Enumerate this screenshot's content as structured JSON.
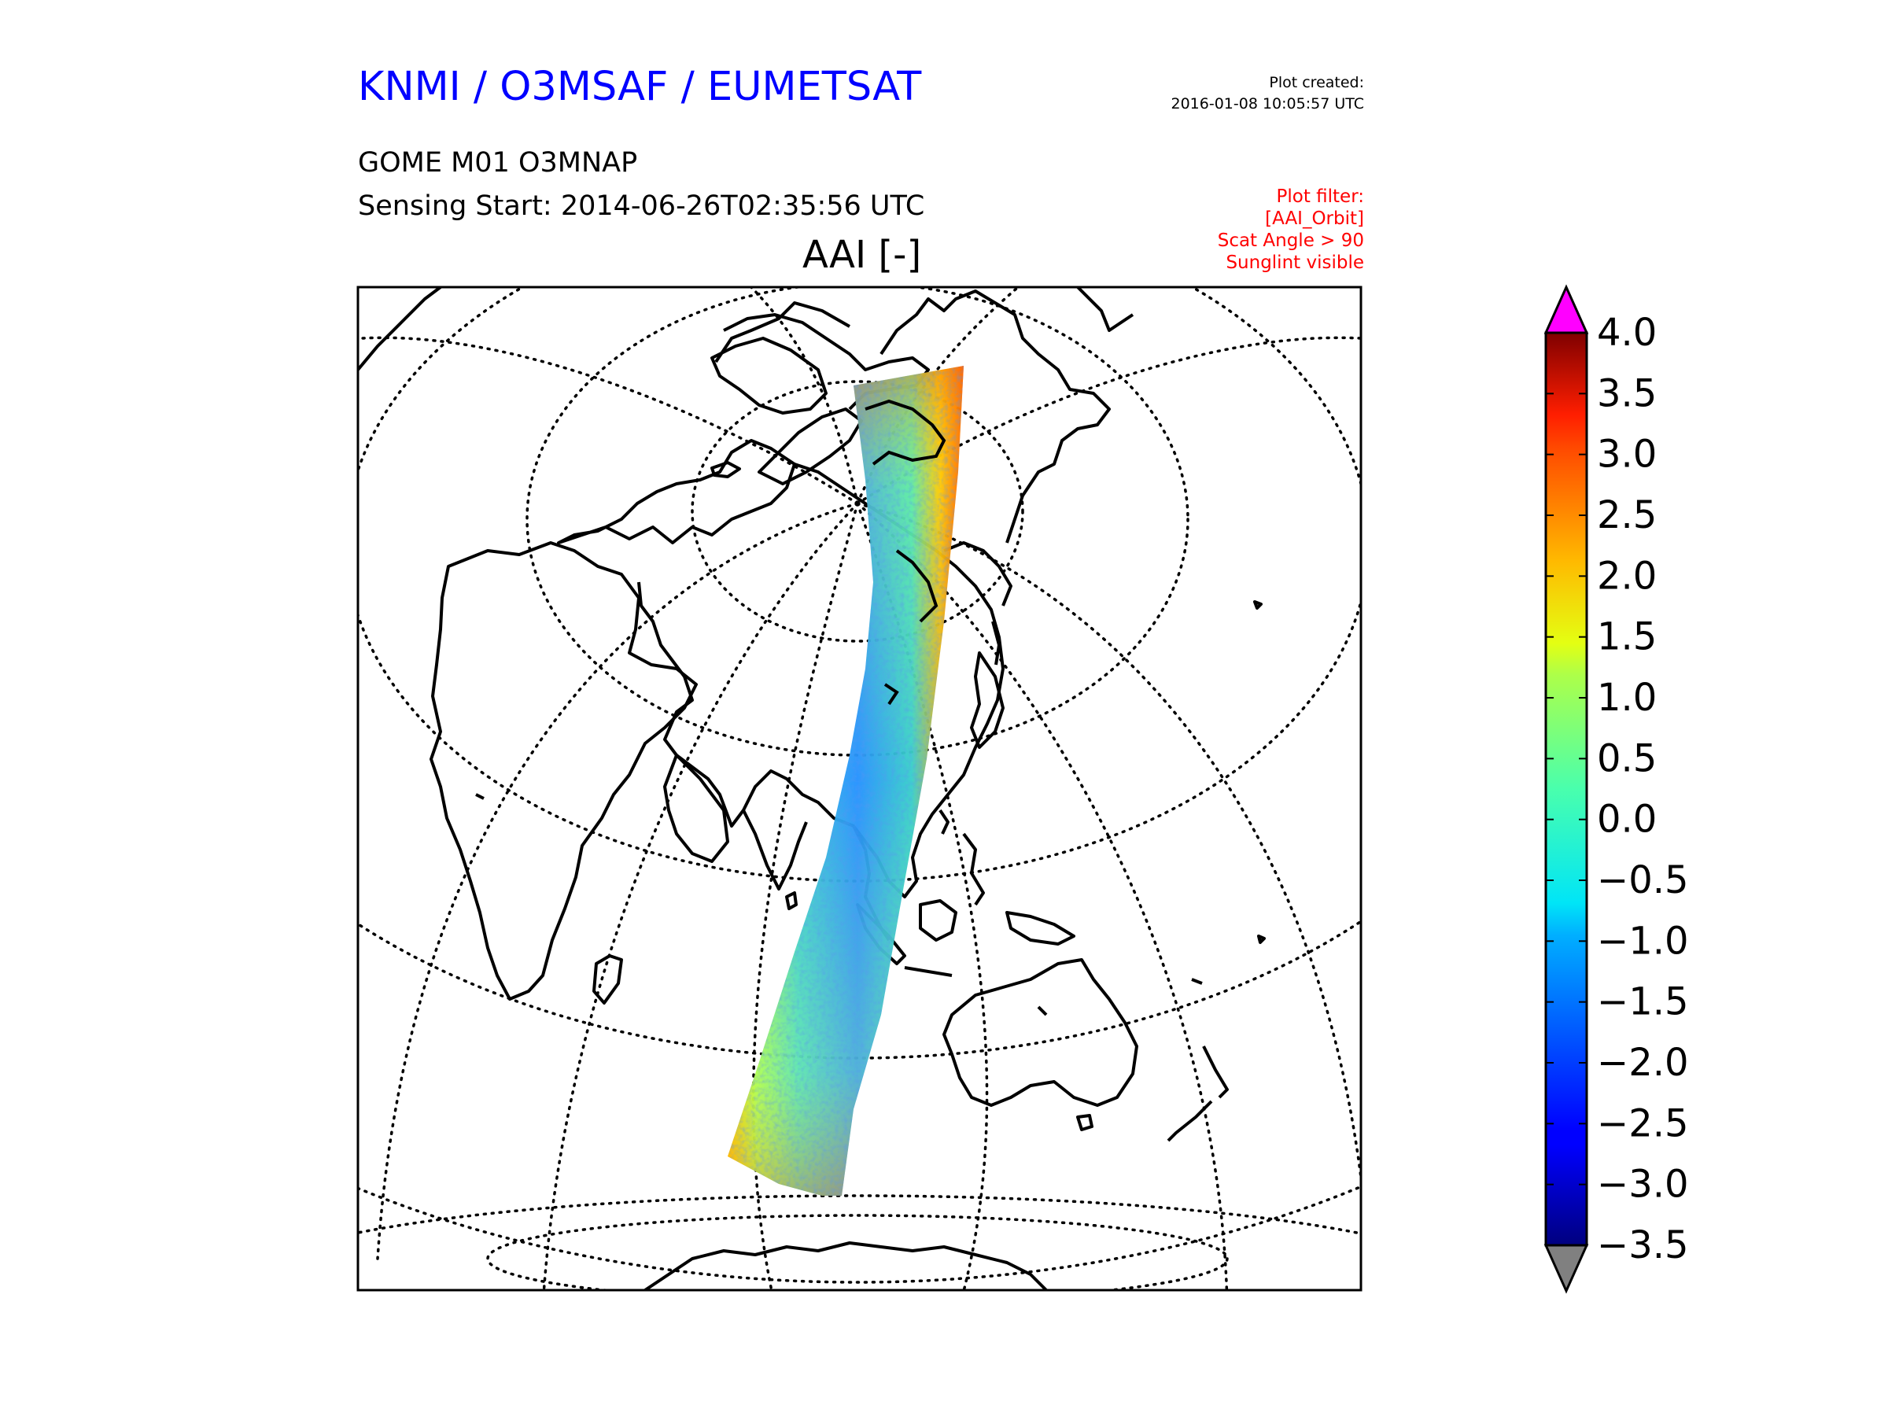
{
  "header": {
    "org_title": "KNMI / O3MSAF / EUMETSAT",
    "plot_created_label": "Plot created:",
    "plot_created_time": "2016-01-08 10:05:57 UTC",
    "product": "GOME M01 O3MNAP",
    "sensing_start": "Sensing Start: 2014-06-26T02:35:56 UTC",
    "filter_lines": [
      "Plot filter:",
      "[AAI_Orbit]",
      "Scat Angle > 90",
      "Sunglint visible"
    ]
  },
  "map": {
    "title": "AAI [-]",
    "projection": "azimuthal (centered over Asia)",
    "graticule": "dotted",
    "coastlines": "black"
  },
  "colorbar": {
    "min": -3.5,
    "max": 4.0,
    "ticks": [
      "4.0",
      "3.5",
      "3.0",
      "2.5",
      "2.0",
      "1.5",
      "1.0",
      "0.5",
      "0.0",
      "−0.5",
      "−1.0",
      "−1.5",
      "−2.0",
      "−2.5",
      "−3.0",
      "−3.5"
    ],
    "over_color": "#ff00ff",
    "under_color": "#808080",
    "colormap": "jet"
  },
  "colors": {
    "org_title": "#0000ff",
    "filter": "#ff0000",
    "text": "#000000"
  }
}
